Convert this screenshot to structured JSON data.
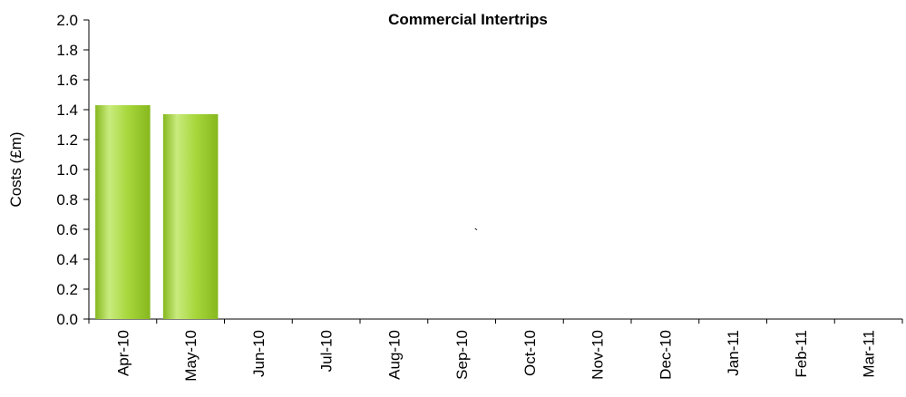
{
  "chart_data": {
    "type": "bar",
    "title": "Commercial Intertrips",
    "xlabel": "",
    "ylabel": "Costs (£m)",
    "categories": [
      "Apr-10",
      "May-10",
      "Jun-10",
      "Jul-10",
      "Aug-10",
      "Sep-10",
      "Oct-10",
      "Nov-10",
      "Dec-10",
      "Jan-11",
      "Feb-11",
      "Mar-11"
    ],
    "values": [
      1.43,
      1.37,
      null,
      null,
      null,
      null,
      null,
      null,
      null,
      null,
      null,
      null
    ],
    "ylim": [
      0,
      2.0
    ],
    "yticks": [
      "0.0",
      "0.2",
      "0.4",
      "0.6",
      "0.8",
      "1.0",
      "1.2",
      "1.4",
      "1.6",
      "1.8",
      "2.0"
    ],
    "grid": false,
    "legend": "none",
    "annotation": "`",
    "colors": {
      "bar_light": "#c9eb7e",
      "bar_mid": "#a6d63a",
      "bar_dark": "#86b81f",
      "axis": "#000000"
    }
  }
}
